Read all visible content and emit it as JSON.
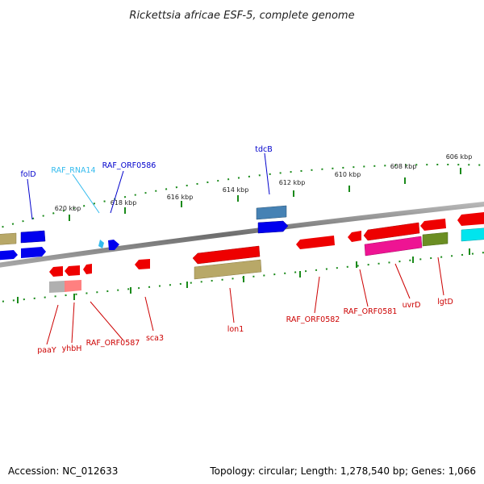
{
  "title": "Rickettsia africae ESF-5, complete genome",
  "footer": {
    "accession": "Accession: NC_012633",
    "summary": "Topology: circular; Length: 1,278,540 bp; Genes: 1,066"
  },
  "colors": {
    "backbone": "#808080",
    "tick": "#1a8a1a",
    "strand_plus": "#0000ee",
    "strand_minus": "#ee0000",
    "rna_label": "#33bbee",
    "plus_label": "#0000cc",
    "minus_label": "#cc0000"
  },
  "scale_labels": [
    "620 kbp",
    "618 kbp",
    "616 kbp",
    "614 kbp",
    "612 kbp",
    "610 kbp",
    "608 kbp",
    "606 kbp"
  ],
  "gene_labels": [
    "folD",
    "RAF_RNA14",
    "RAF_ORF0586",
    "tdcB",
    "paaY",
    "yhbH",
    "RAF_ORF0587",
    "sca3",
    "lon1",
    "RAF_ORF0582",
    "RAF_ORF0581",
    "uvrD",
    "lgtD"
  ]
}
